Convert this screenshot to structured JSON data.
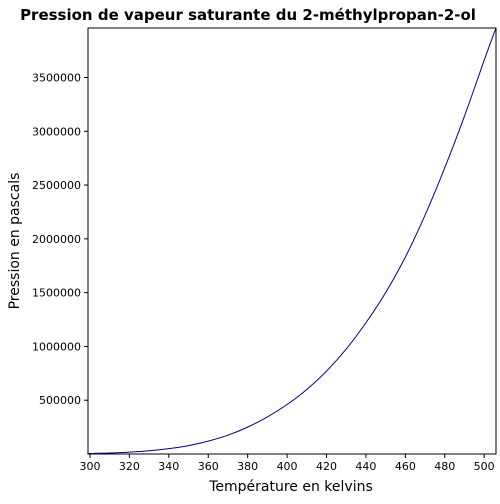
{
  "chart_data": {
    "type": "line",
    "title": "Pression de vapeur saturante du 2-méthylpropan-2-ol",
    "xlabel": "Température en kelvins",
    "ylabel": "Pression en pascals",
    "xlim": [
      299,
      506
    ],
    "ylim": [
      0,
      3960000
    ],
    "x_ticks": [
      300,
      320,
      340,
      360,
      380,
      400,
      420,
      440,
      460,
      480,
      500
    ],
    "y_ticks": [
      500000,
      1000000,
      1500000,
      2000000,
      2500000,
      3000000,
      3500000
    ],
    "grid": false,
    "series": [
      {
        "color": "#00008b",
        "x": [
          299,
          300,
          310,
          320,
          330,
          340,
          350,
          360,
          370,
          380,
          390,
          400,
          410,
          420,
          430,
          440,
          450,
          460,
          470,
          480,
          490,
          500,
          506
        ],
        "y": [
          4000,
          4500,
          9000,
          17000,
          30000,
          50000,
          78000,
          120000,
          175000,
          250000,
          345000,
          460000,
          600000,
          770000,
          975000,
          1220000,
          1500000,
          1830000,
          2220000,
          2660000,
          3140000,
          3660000,
          3960000
        ]
      }
    ]
  }
}
